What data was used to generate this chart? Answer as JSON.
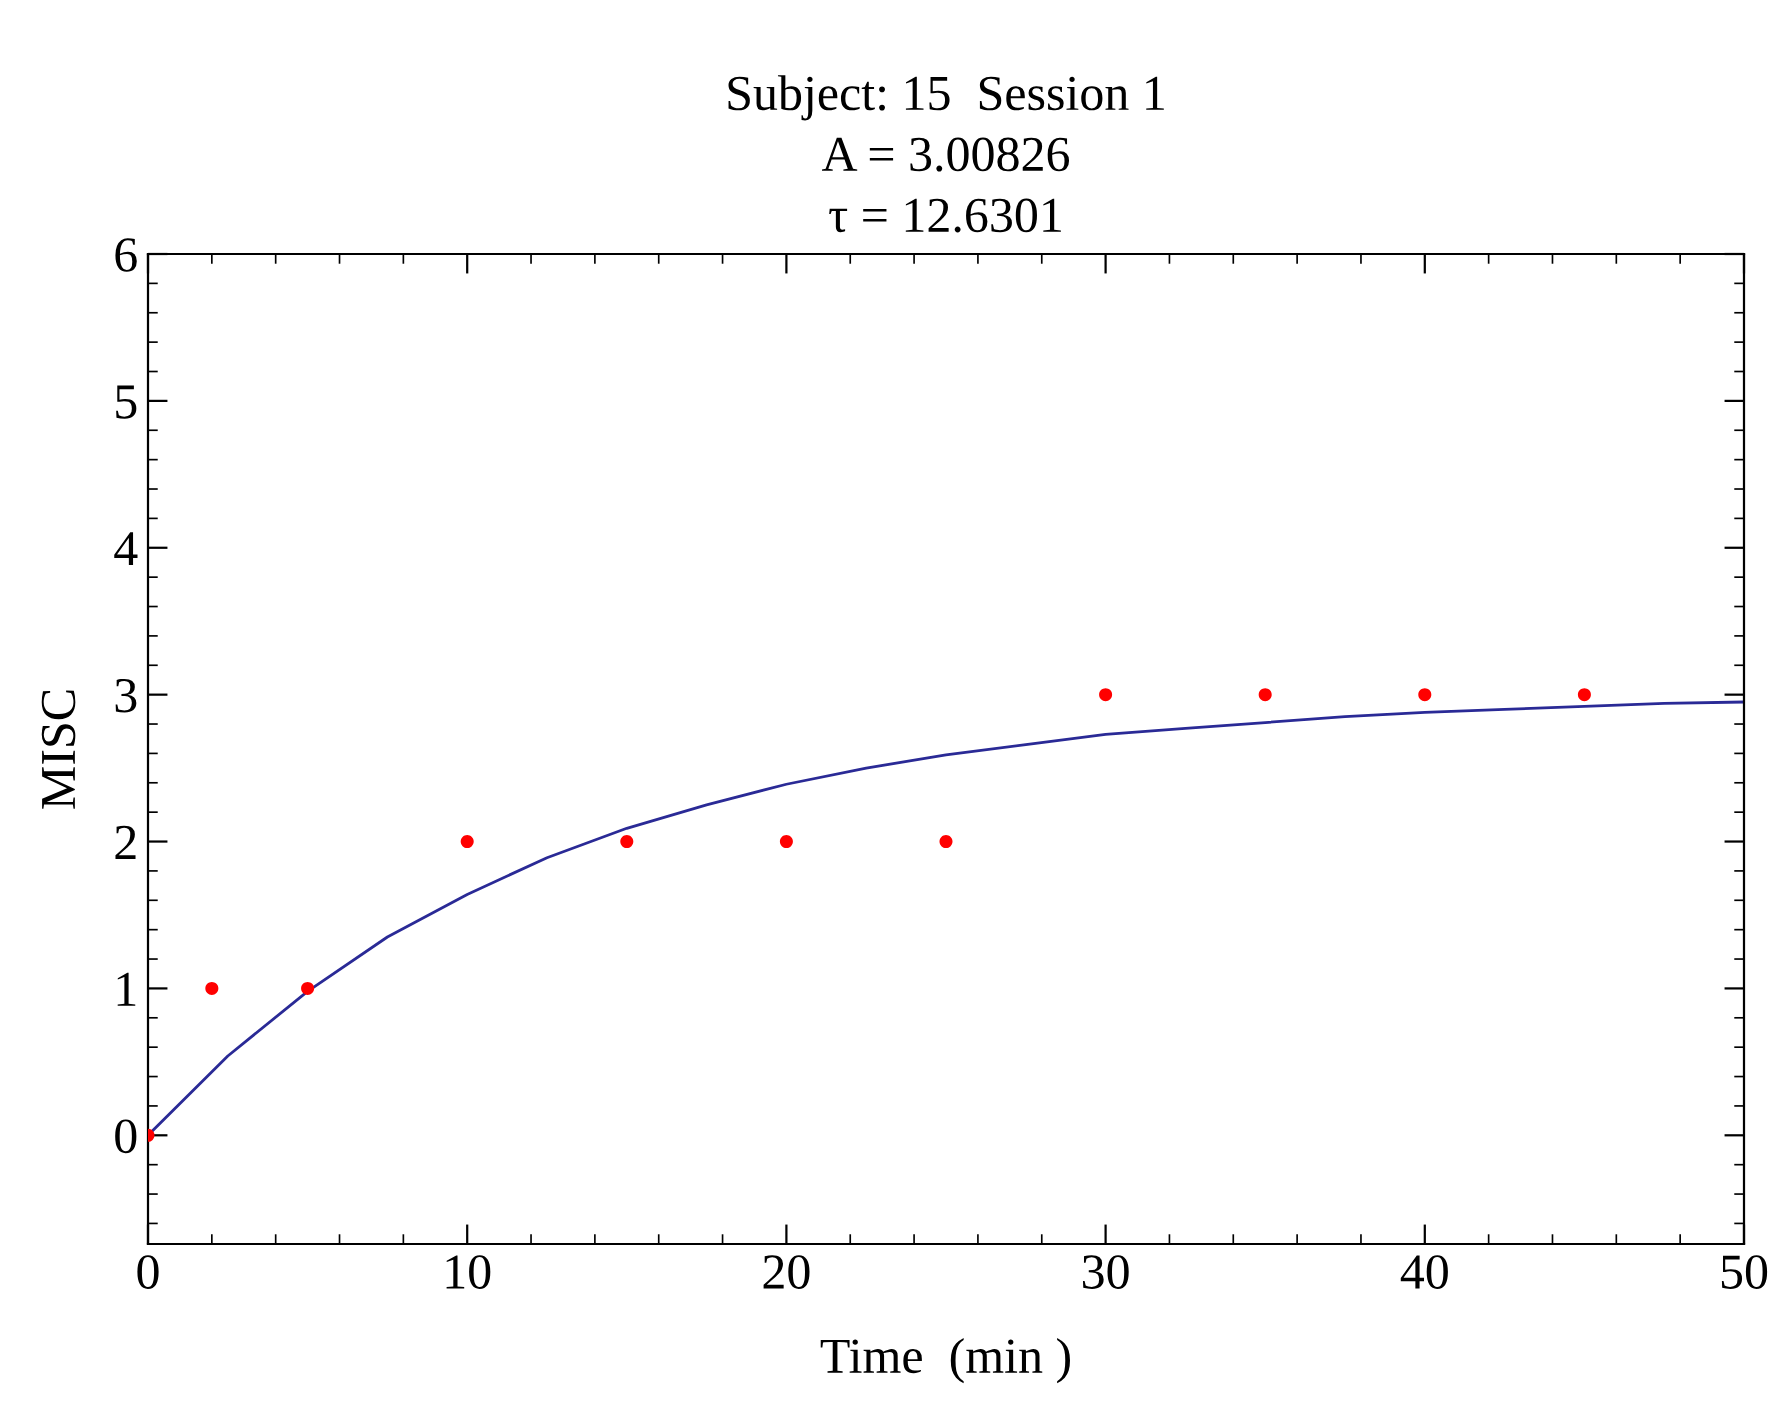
{
  "chart_data": {
    "type": "scatter",
    "title": "Subject: 15  Session 1\nA = 3.00826\nτ = 12.6301",
    "xlabel": "Time  (min )",
    "ylabel": "MISC",
    "series": [
      {
        "type": "line",
        "color": "#2a2a96",
        "x": [
          0,
          2.5,
          5,
          7.5,
          10,
          12.5,
          15,
          17.5,
          20,
          22.5,
          25,
          27.5,
          30,
          32.5,
          35,
          37.5,
          40,
          42.5,
          45,
          47.5,
          50
        ],
        "values": [
          0,
          0.54,
          0.98,
          1.35,
          1.64,
          1.89,
          2.09,
          2.25,
          2.39,
          2.5,
          2.59,
          2.66,
          2.73,
          2.77,
          2.81,
          2.85,
          2.88,
          2.9,
          2.92,
          2.94,
          2.95
        ]
      },
      {
        "color": "#ff0000",
        "marker": "circle",
        "x": [
          0,
          2,
          5,
          10,
          15,
          20,
          25,
          30,
          35,
          40,
          45
        ],
        "values": [
          0,
          1,
          1,
          2,
          2,
          2,
          2,
          3,
          3,
          3,
          3
        ]
      }
    ],
    "xlim": [
      0,
      50
    ],
    "xticks": [
      0,
      10,
      20,
      30,
      40,
      50
    ],
    "ylim": [
      -0.74,
      6
    ],
    "yticks": [
      0,
      1,
      2,
      3,
      4,
      5,
      6
    ],
    "grid": false,
    "legend": false
  }
}
